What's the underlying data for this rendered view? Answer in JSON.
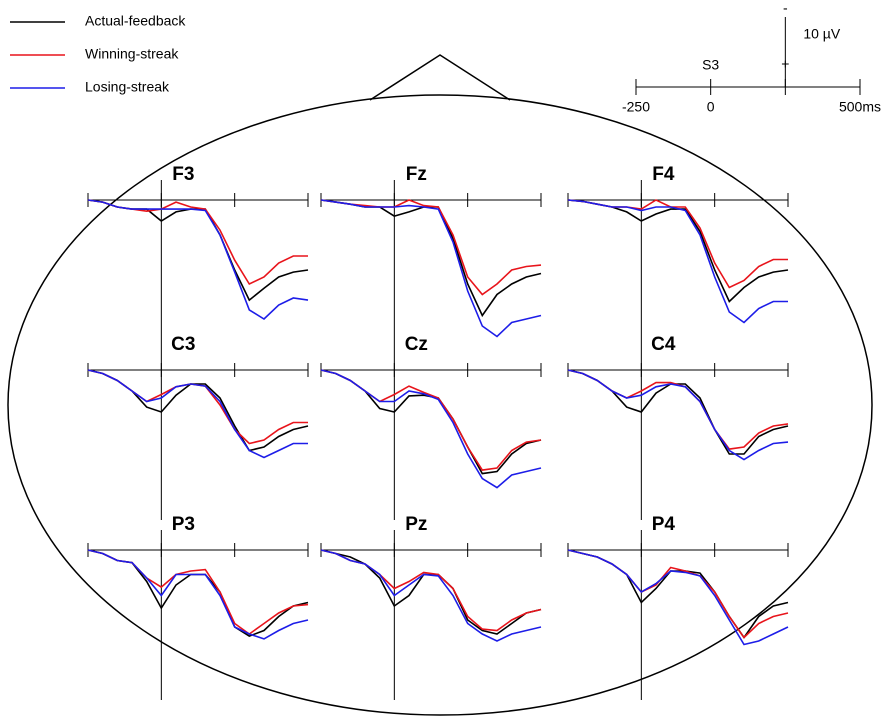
{
  "legend": [
    {
      "name": "Actual-feedback",
      "color": "#000000"
    },
    {
      "name": "Winning-streak",
      "color": "#e8141b"
    },
    {
      "name": "Losing-streak",
      "color": "#1d1de8"
    }
  ],
  "scale": {
    "event_label": "S3",
    "xlim": [
      -250,
      500
    ],
    "xticks": [
      -250,
      0,
      {
        "value": 250,
        "label": null
      },
      {
        "value": 500,
        "label": "500ms"
      }
    ],
    "amplitude": {
      "value": 10,
      "label": "10 µV",
      "negative_sign": "-",
      "positive_sign": "+"
    }
  },
  "chart_data": [
    {
      "type": "line",
      "title": "F3",
      "x": [
        -250,
        -200,
        -150,
        -100,
        -50,
        0,
        50,
        100,
        150,
        200,
        250,
        300,
        350,
        400,
        450,
        500
      ],
      "xlim": [
        -250,
        500
      ],
      "xticks": [
        -250,
        0,
        250,
        500
      ],
      "series": [
        {
          "values": [
            0,
            0.3,
            1,
            1.3,
            1.3,
            3,
            1.7,
            1.3,
            1.3,
            5,
            10,
            14.3,
            12.6,
            11,
            10.3,
            10
          ]
        },
        {
          "values": [
            0,
            0.3,
            1,
            1.3,
            1.6,
            1.3,
            0.3,
            1,
            1.3,
            4.3,
            8.6,
            12,
            11,
            9,
            8,
            8
          ]
        },
        {
          "values": [
            0,
            0.3,
            1,
            1.3,
            1.3,
            1.3,
            1.3,
            1.3,
            1.5,
            5,
            10.3,
            15.7,
            17,
            15,
            14,
            14.3
          ]
        }
      ]
    },
    {
      "type": "line",
      "title": "Fz",
      "x": [
        -250,
        -200,
        -150,
        -100,
        -50,
        0,
        50,
        100,
        150,
        200,
        250,
        300,
        350,
        400,
        450,
        500
      ],
      "xlim": [
        -250,
        500
      ],
      "xticks": [
        -250,
        0,
        250,
        500
      ],
      "series": [
        {
          "values": [
            0,
            0.3,
            0.6,
            1,
            1,
            2.3,
            1.7,
            1,
            1,
            5.5,
            12,
            16.5,
            13.5,
            12,
            11,
            10.5
          ]
        },
        {
          "values": [
            0,
            0.3,
            0.6,
            0.8,
            1,
            1,
            0,
            0.8,
            1,
            5,
            11,
            13.5,
            12,
            10,
            9.5,
            9.3
          ]
        },
        {
          "values": [
            0,
            0.3,
            0.6,
            1,
            1,
            1,
            0.8,
            1,
            1.3,
            6,
            13,
            18,
            19.5,
            17.5,
            17,
            16.5
          ]
        }
      ]
    },
    {
      "type": "line",
      "title": "F4",
      "x": [
        -250,
        -200,
        -150,
        -100,
        -50,
        0,
        50,
        100,
        150,
        200,
        250,
        300,
        350,
        400,
        450,
        500
      ],
      "xlim": [
        -250,
        500
      ],
      "xticks": [
        -250,
        0,
        250,
        500
      ],
      "series": [
        {
          "values": [
            0,
            0.2,
            0.6,
            1,
            1.7,
            3,
            2,
            1.3,
            1.3,
            4.5,
            10,
            14.5,
            12.5,
            11,
            10.3,
            10
          ]
        },
        {
          "values": [
            0,
            0.2,
            0.6,
            1,
            1,
            1.3,
            0,
            1,
            1,
            4,
            9,
            12.5,
            11.5,
            9.5,
            8.5,
            8.5
          ]
        },
        {
          "values": [
            0,
            0.2,
            0.6,
            1,
            1,
            1.5,
            1,
            1,
            1.5,
            5,
            11,
            16,
            17.5,
            15.5,
            14.5,
            14.5
          ]
        }
      ]
    },
    {
      "type": "line",
      "title": "C3",
      "x": [
        -250,
        -200,
        -150,
        -100,
        -50,
        0,
        50,
        100,
        150,
        200,
        250,
        300,
        350,
        400,
        450,
        500
      ],
      "xlim": [
        -250,
        500
      ],
      "xticks": [
        -250,
        0,
        250,
        500
      ],
      "series": [
        {
          "values": [
            0,
            0.5,
            1.5,
            3,
            5.3,
            6,
            3.6,
            2,
            2,
            4,
            8,
            11.5,
            11,
            9.5,
            8.5,
            8
          ]
        },
        {
          "values": [
            0,
            0.5,
            1.5,
            3,
            4.5,
            3.5,
            2.4,
            2,
            2.3,
            5,
            8.5,
            10.5,
            10,
            8.5,
            7.5,
            7.5
          ]
        },
        {
          "values": [
            0,
            0.5,
            1.5,
            3,
            4.5,
            4,
            2.4,
            2,
            2.3,
            4.5,
            8.5,
            11.5,
            12.5,
            11.5,
            10.5,
            10.5
          ]
        }
      ]
    },
    {
      "type": "line",
      "title": "Cz",
      "x": [
        -250,
        -200,
        -150,
        -100,
        -50,
        0,
        50,
        100,
        150,
        200,
        250,
        300,
        350,
        400,
        450,
        500
      ],
      "xlim": [
        -250,
        500
      ],
      "xticks": [
        -250,
        0,
        250,
        500
      ],
      "series": [
        {
          "values": [
            0,
            0.5,
            1.5,
            3,
            5.5,
            6,
            3.7,
            3.6,
            4,
            7,
            11,
            14.8,
            14.5,
            12,
            10.5,
            10
          ]
        },
        {
          "values": [
            0,
            0.5,
            1.5,
            3,
            4.5,
            3.5,
            2.3,
            3.2,
            4,
            7,
            11,
            14.3,
            14,
            11.5,
            10.3,
            10
          ]
        },
        {
          "values": [
            0,
            0.5,
            1.5,
            3,
            4.5,
            4.5,
            3,
            3.4,
            4.2,
            7.5,
            12,
            15.5,
            16.8,
            15,
            14.5,
            14
          ]
        }
      ]
    },
    {
      "type": "line",
      "title": "C4",
      "x": [
        -250,
        -200,
        -150,
        -100,
        -50,
        0,
        50,
        100,
        150,
        200,
        250,
        300,
        350,
        400,
        450,
        500
      ],
      "xlim": [
        -250,
        500
      ],
      "xticks": [
        -250,
        0,
        250,
        500
      ],
      "series": [
        {
          "values": [
            0,
            0.5,
            1.5,
            3,
            5.3,
            6,
            3.3,
            2,
            2,
            4,
            8.5,
            12,
            12,
            9.5,
            8.5,
            8
          ]
        },
        {
          "values": [
            0,
            0.5,
            1.5,
            3,
            4,
            3,
            1.8,
            1.8,
            2.4,
            4.5,
            8.5,
            11.3,
            11,
            9,
            8,
            7.7
          ]
        },
        {
          "values": [
            0,
            0.5,
            1.5,
            3,
            4,
            3.6,
            2.4,
            2,
            2.4,
            4.5,
            8.5,
            11.5,
            12.8,
            11.5,
            10.5,
            10.3
          ]
        }
      ]
    },
    {
      "type": "line",
      "title": "P3",
      "x": [
        -250,
        -200,
        -150,
        -100,
        -50,
        0,
        50,
        100,
        150,
        200,
        250,
        300,
        350,
        400,
        450,
        500
      ],
      "xlim": [
        -250,
        500
      ],
      "xticks": [
        -250,
        0,
        250,
        500
      ],
      "series": [
        {
          "values": [
            0,
            0.5,
            1.5,
            1.8,
            4.5,
            8.3,
            5,
            3.5,
            3.5,
            6,
            11,
            12.3,
            11.5,
            9.5,
            8,
            7.5
          ]
        },
        {
          "values": [
            0,
            0.5,
            1.5,
            1.8,
            4,
            5.3,
            3.5,
            3,
            2.8,
            6,
            10.5,
            12,
            10.5,
            9,
            8,
            7.8
          ]
        },
        {
          "values": [
            0,
            0.5,
            1.5,
            1.8,
            4,
            6.5,
            3.5,
            3.5,
            3.5,
            6.5,
            11,
            12,
            12.7,
            11.5,
            10.5,
            10
          ]
        }
      ]
    },
    {
      "type": "line",
      "title": "Pz",
      "x": [
        -250,
        -200,
        -150,
        -100,
        -50,
        0,
        50,
        100,
        150,
        200,
        250,
        300,
        350,
        400,
        450,
        500
      ],
      "xlim": [
        -250,
        500
      ],
      "xticks": [
        -250,
        0,
        250,
        500
      ],
      "series": [
        {
          "values": [
            0,
            0.5,
            1,
            2,
            4,
            8,
            6.5,
            3.5,
            3.5,
            5.5,
            10,
            11.5,
            12,
            10.5,
            9,
            8.5
          ]
        },
        {
          "values": [
            0,
            0.5,
            1.5,
            2,
            3.5,
            5.5,
            4.5,
            3.2,
            3.5,
            5.5,
            9.5,
            11.3,
            11.5,
            10,
            9,
            8.5
          ]
        },
        {
          "values": [
            0,
            0.5,
            1.5,
            2,
            3.5,
            6.5,
            5,
            3.5,
            3.7,
            6.5,
            10.5,
            12,
            13,
            12,
            11.5,
            11
          ]
        }
      ]
    },
    {
      "type": "line",
      "title": "P4",
      "x": [
        -250,
        -200,
        -150,
        -100,
        -50,
        0,
        50,
        100,
        150,
        200,
        250,
        300,
        350,
        400,
        450,
        500
      ],
      "xlim": [
        -250,
        500
      ],
      "xticks": [
        -250,
        0,
        250,
        500
      ],
      "series": [
        {
          "values": [
            0,
            0.5,
            1,
            2,
            3.5,
            7.5,
            5.5,
            3,
            3,
            3.3,
            6,
            9.5,
            12.5,
            9.5,
            8,
            7.5
          ]
        },
        {
          "values": [
            0,
            0.5,
            1,
            2,
            3.5,
            6,
            5,
            2.5,
            3,
            3.7,
            6,
            9.5,
            12.5,
            10.5,
            9.5,
            9
          ]
        },
        {
          "values": [
            0,
            0.5,
            1,
            2,
            3.5,
            6,
            4.8,
            3,
            3.2,
            3.7,
            6.5,
            10,
            13.5,
            13,
            12,
            11
          ]
        }
      ]
    }
  ]
}
